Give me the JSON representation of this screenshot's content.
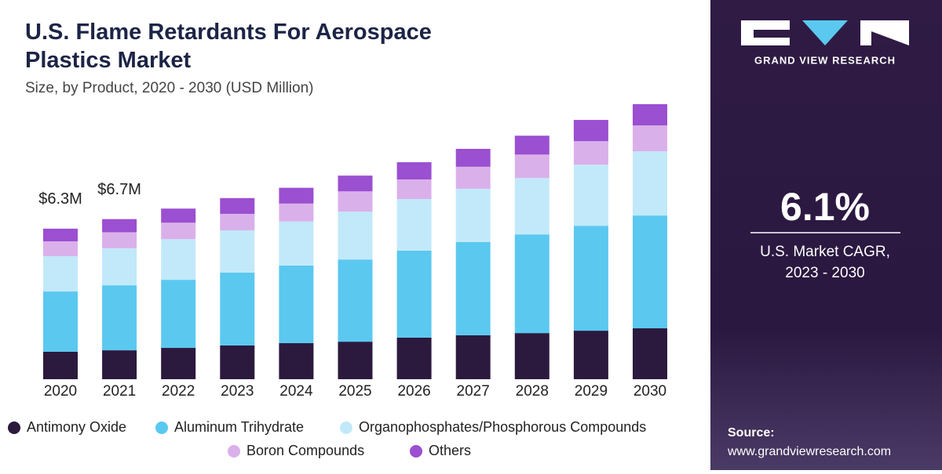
{
  "chart_data": {
    "type": "stacked-bar",
    "title": "U.S. Flame Retardants For Aerospace Plastics Market",
    "subtitle": "Size, by Product, 2020 - 2030 (USD Million)",
    "categories": [
      "2020",
      "2021",
      "2022",
      "2023",
      "2024",
      "2025",
      "2026",
      "2027",
      "2028",
      "2029",
      "2030"
    ],
    "series": [
      {
        "name": "Antimony Oxide",
        "color": "#2b1a3e",
        "values": [
          1.15,
          1.21,
          1.31,
          1.41,
          1.51,
          1.57,
          1.74,
          1.84,
          1.93,
          2.03,
          2.13
        ]
      },
      {
        "name": "Aluminum Trihydrate",
        "color": "#5bc8f0",
        "values": [
          2.52,
          2.72,
          2.85,
          3.05,
          3.25,
          3.44,
          3.64,
          3.9,
          4.13,
          4.39,
          4.72
        ]
      },
      {
        "name": "Organophosphates/Phosphorous Compounds",
        "color": "#c2e9f9",
        "values": [
          1.48,
          1.55,
          1.7,
          1.77,
          1.84,
          2.0,
          2.16,
          2.23,
          2.36,
          2.56,
          2.69
        ]
      },
      {
        "name": "Boron Compounds",
        "color": "#dab0ea",
        "values": [
          0.62,
          0.67,
          0.69,
          0.69,
          0.75,
          0.85,
          0.82,
          0.92,
          0.98,
          0.98,
          1.08
        ]
      },
      {
        "name": "Others",
        "color": "#9b4fd1",
        "values": [
          0.53,
          0.55,
          0.59,
          0.66,
          0.66,
          0.66,
          0.72,
          0.75,
          0.79,
          0.89,
          0.89
        ]
      }
    ],
    "annotations": [
      {
        "value": 6.3,
        "label": "$6.3M"
      },
      {
        "value": 6.7,
        "label": "$6.7M"
      }
    ]
  },
  "side_panel": {
    "brand": "GRAND VIEW RESEARCH",
    "cagr": "6.1%",
    "cagr_caption": "U.S. Market CAGR, 2023 - 2030",
    "source_label": "Source:",
    "source_url": "www.grandviewresearch.com"
  }
}
